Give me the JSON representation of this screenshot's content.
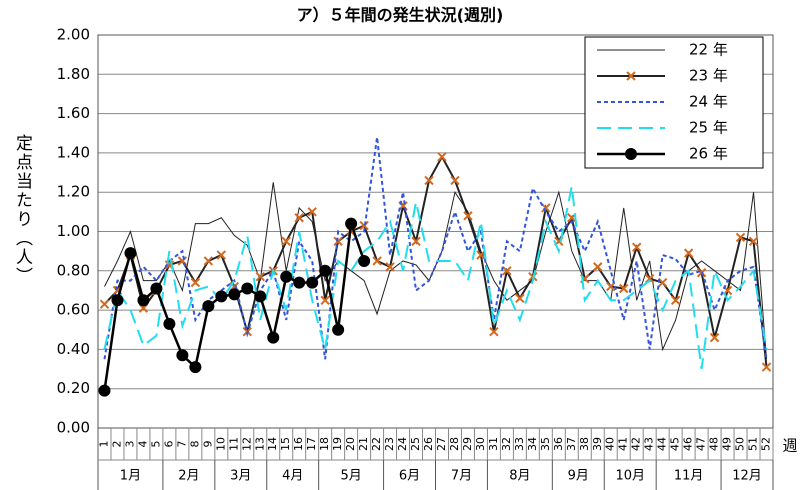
{
  "chart_data": {
    "type": "line",
    "title": "ア）５年間の発生状況(週別)",
    "y_label": "定点当たり（人）",
    "x_label": "週",
    "categories": [
      "1",
      "2",
      "3",
      "4",
      "5",
      "6",
      "7",
      "8",
      "9",
      "10",
      "11",
      "12",
      "13",
      "14",
      "15",
      "16",
      "17",
      "18",
      "19",
      "20",
      "21",
      "22",
      "23",
      "24",
      "25",
      "26",
      "27",
      "28",
      "29",
      "30",
      "31",
      "32",
      "33",
      "34",
      "35",
      "36",
      "37",
      "38",
      "39",
      "40",
      "41",
      "42",
      "43",
      "44",
      "45",
      "46",
      "47",
      "48",
      "49",
      "50",
      "51",
      "52"
    ],
    "months": [
      "1月",
      "2月",
      "3月",
      "4月",
      "5月",
      "6月",
      "7月",
      "8月",
      "9月",
      "10月",
      "11月",
      "12月"
    ],
    "ylim": [
      0,
      2
    ],
    "yticks": [
      {
        "value": 0,
        "label": "0.00"
      },
      {
        "value": 0.2,
        "label": "0.20"
      },
      {
        "value": 0.4,
        "label": "0.40"
      },
      {
        "value": 0.6,
        "label": "0.60"
      },
      {
        "value": 0.8,
        "label": "0.80"
      },
      {
        "value": 1,
        "label": "1.00"
      },
      {
        "value": 1.2,
        "label": "1.20"
      },
      {
        "value": 1.4,
        "label": "1.40"
      },
      {
        "value": 1.6,
        "label": "1.60"
      },
      {
        "value": 1.8,
        "label": "1.80"
      },
      {
        "value": 2,
        "label": "2.00"
      }
    ],
    "grid": true,
    "legend": "upper right",
    "series": [
      {
        "name": "22 年",
        "color": "#222222",
        "style": "thin",
        "marker": "none",
        "values": [
          0.72,
          0.85,
          1.0,
          0.75,
          0.75,
          0.85,
          0.7,
          1.04,
          1.04,
          1.07,
          0.98,
          0.93,
          0.75,
          1.25,
          0.8,
          1.12,
          1.05,
          0.75,
          0.85,
          0.8,
          0.75,
          0.58,
          0.8,
          0.85,
          0.83,
          0.75,
          0.9,
          1.2,
          1.1,
          0.9,
          0.75,
          0.65,
          0.7,
          0.75,
          1.0,
          1.2,
          0.9,
          0.75,
          0.75,
          0.65,
          1.12,
          0.65,
          0.85,
          0.4,
          0.55,
          0.8,
          0.85,
          0.8,
          0.75,
          0.7,
          1.2,
          0.35
        ]
      },
      {
        "name": "23 年",
        "color": "#222222",
        "marker_color": "#d2691e",
        "style": "solid",
        "marker": "x",
        "values": [
          0.63,
          0.7,
          0.88,
          0.61,
          0.7,
          0.83,
          0.85,
          0.74,
          0.85,
          0.88,
          0.72,
          0.49,
          0.77,
          0.8,
          0.95,
          1.07,
          1.1,
          0.65,
          0.95,
          1.0,
          1.03,
          0.85,
          0.82,
          1.13,
          0.95,
          1.26,
          1.38,
          1.26,
          1.08,
          0.88,
          0.49,
          0.8,
          0.66,
          0.77,
          1.12,
          0.95,
          1.07,
          0.76,
          0.82,
          0.72,
          0.71,
          0.92,
          0.76,
          0.74,
          0.65,
          0.89,
          0.79,
          0.46,
          0.7,
          0.97,
          0.95,
          0.31
        ]
      },
      {
        "name": "24 年",
        "color": "#3355dd",
        "style": "dotted",
        "marker": "none",
        "values": [
          0.35,
          0.75,
          0.75,
          0.82,
          0.75,
          0.85,
          0.9,
          0.55,
          0.65,
          0.7,
          0.75,
          0.48,
          0.7,
          0.8,
          0.55,
          0.95,
          0.85,
          0.35,
          1.0,
          0.95,
          1.0,
          1.48,
          0.88,
          1.2,
          0.7,
          0.75,
          0.9,
          1.1,
          0.9,
          1.0,
          0.55,
          0.95,
          0.9,
          1.22,
          1.1,
          1.0,
          1.05,
          0.9,
          1.05,
          0.8,
          0.55,
          0.85,
          0.4,
          0.88,
          0.86,
          0.78,
          0.8,
          0.6,
          0.75,
          0.8,
          0.82,
          0.35
        ]
      },
      {
        "name": "25 年",
        "color": "#22ddee",
        "style": "dashed",
        "marker": "none",
        "values": [
          0.4,
          0.7,
          0.6,
          0.42,
          0.47,
          0.9,
          0.52,
          0.7,
          0.72,
          0.65,
          0.75,
          0.98,
          0.55,
          0.8,
          0.6,
          1.0,
          0.65,
          0.4,
          0.85,
          0.8,
          0.9,
          0.95,
          1.05,
          0.8,
          1.15,
          0.85,
          0.85,
          0.85,
          0.75,
          1.05,
          0.52,
          0.7,
          0.55,
          0.75,
          1.05,
          0.9,
          1.23,
          0.65,
          0.75,
          0.65,
          0.65,
          0.7,
          0.75,
          0.6,
          0.75,
          0.8,
          0.3,
          0.8,
          0.65,
          0.72,
          0.8,
          0.4
        ]
      },
      {
        "name": "26 年",
        "color": "#000000",
        "style": "bold",
        "marker": "circle",
        "values": [
          0.19,
          0.65,
          0.89,
          0.65,
          0.71,
          0.53,
          0.37,
          0.31,
          0.62,
          0.67,
          0.68,
          0.71,
          0.67,
          0.46,
          0.77,
          0.74,
          0.74,
          0.8,
          0.5,
          1.04,
          0.85,
          null,
          null,
          null,
          null,
          null,
          null,
          null,
          null,
          null,
          null,
          null,
          null,
          null,
          null,
          null,
          null,
          null,
          null,
          null,
          null,
          null,
          null,
          null,
          null,
          null,
          null,
          null,
          null,
          null,
          null,
          null
        ]
      }
    ]
  }
}
